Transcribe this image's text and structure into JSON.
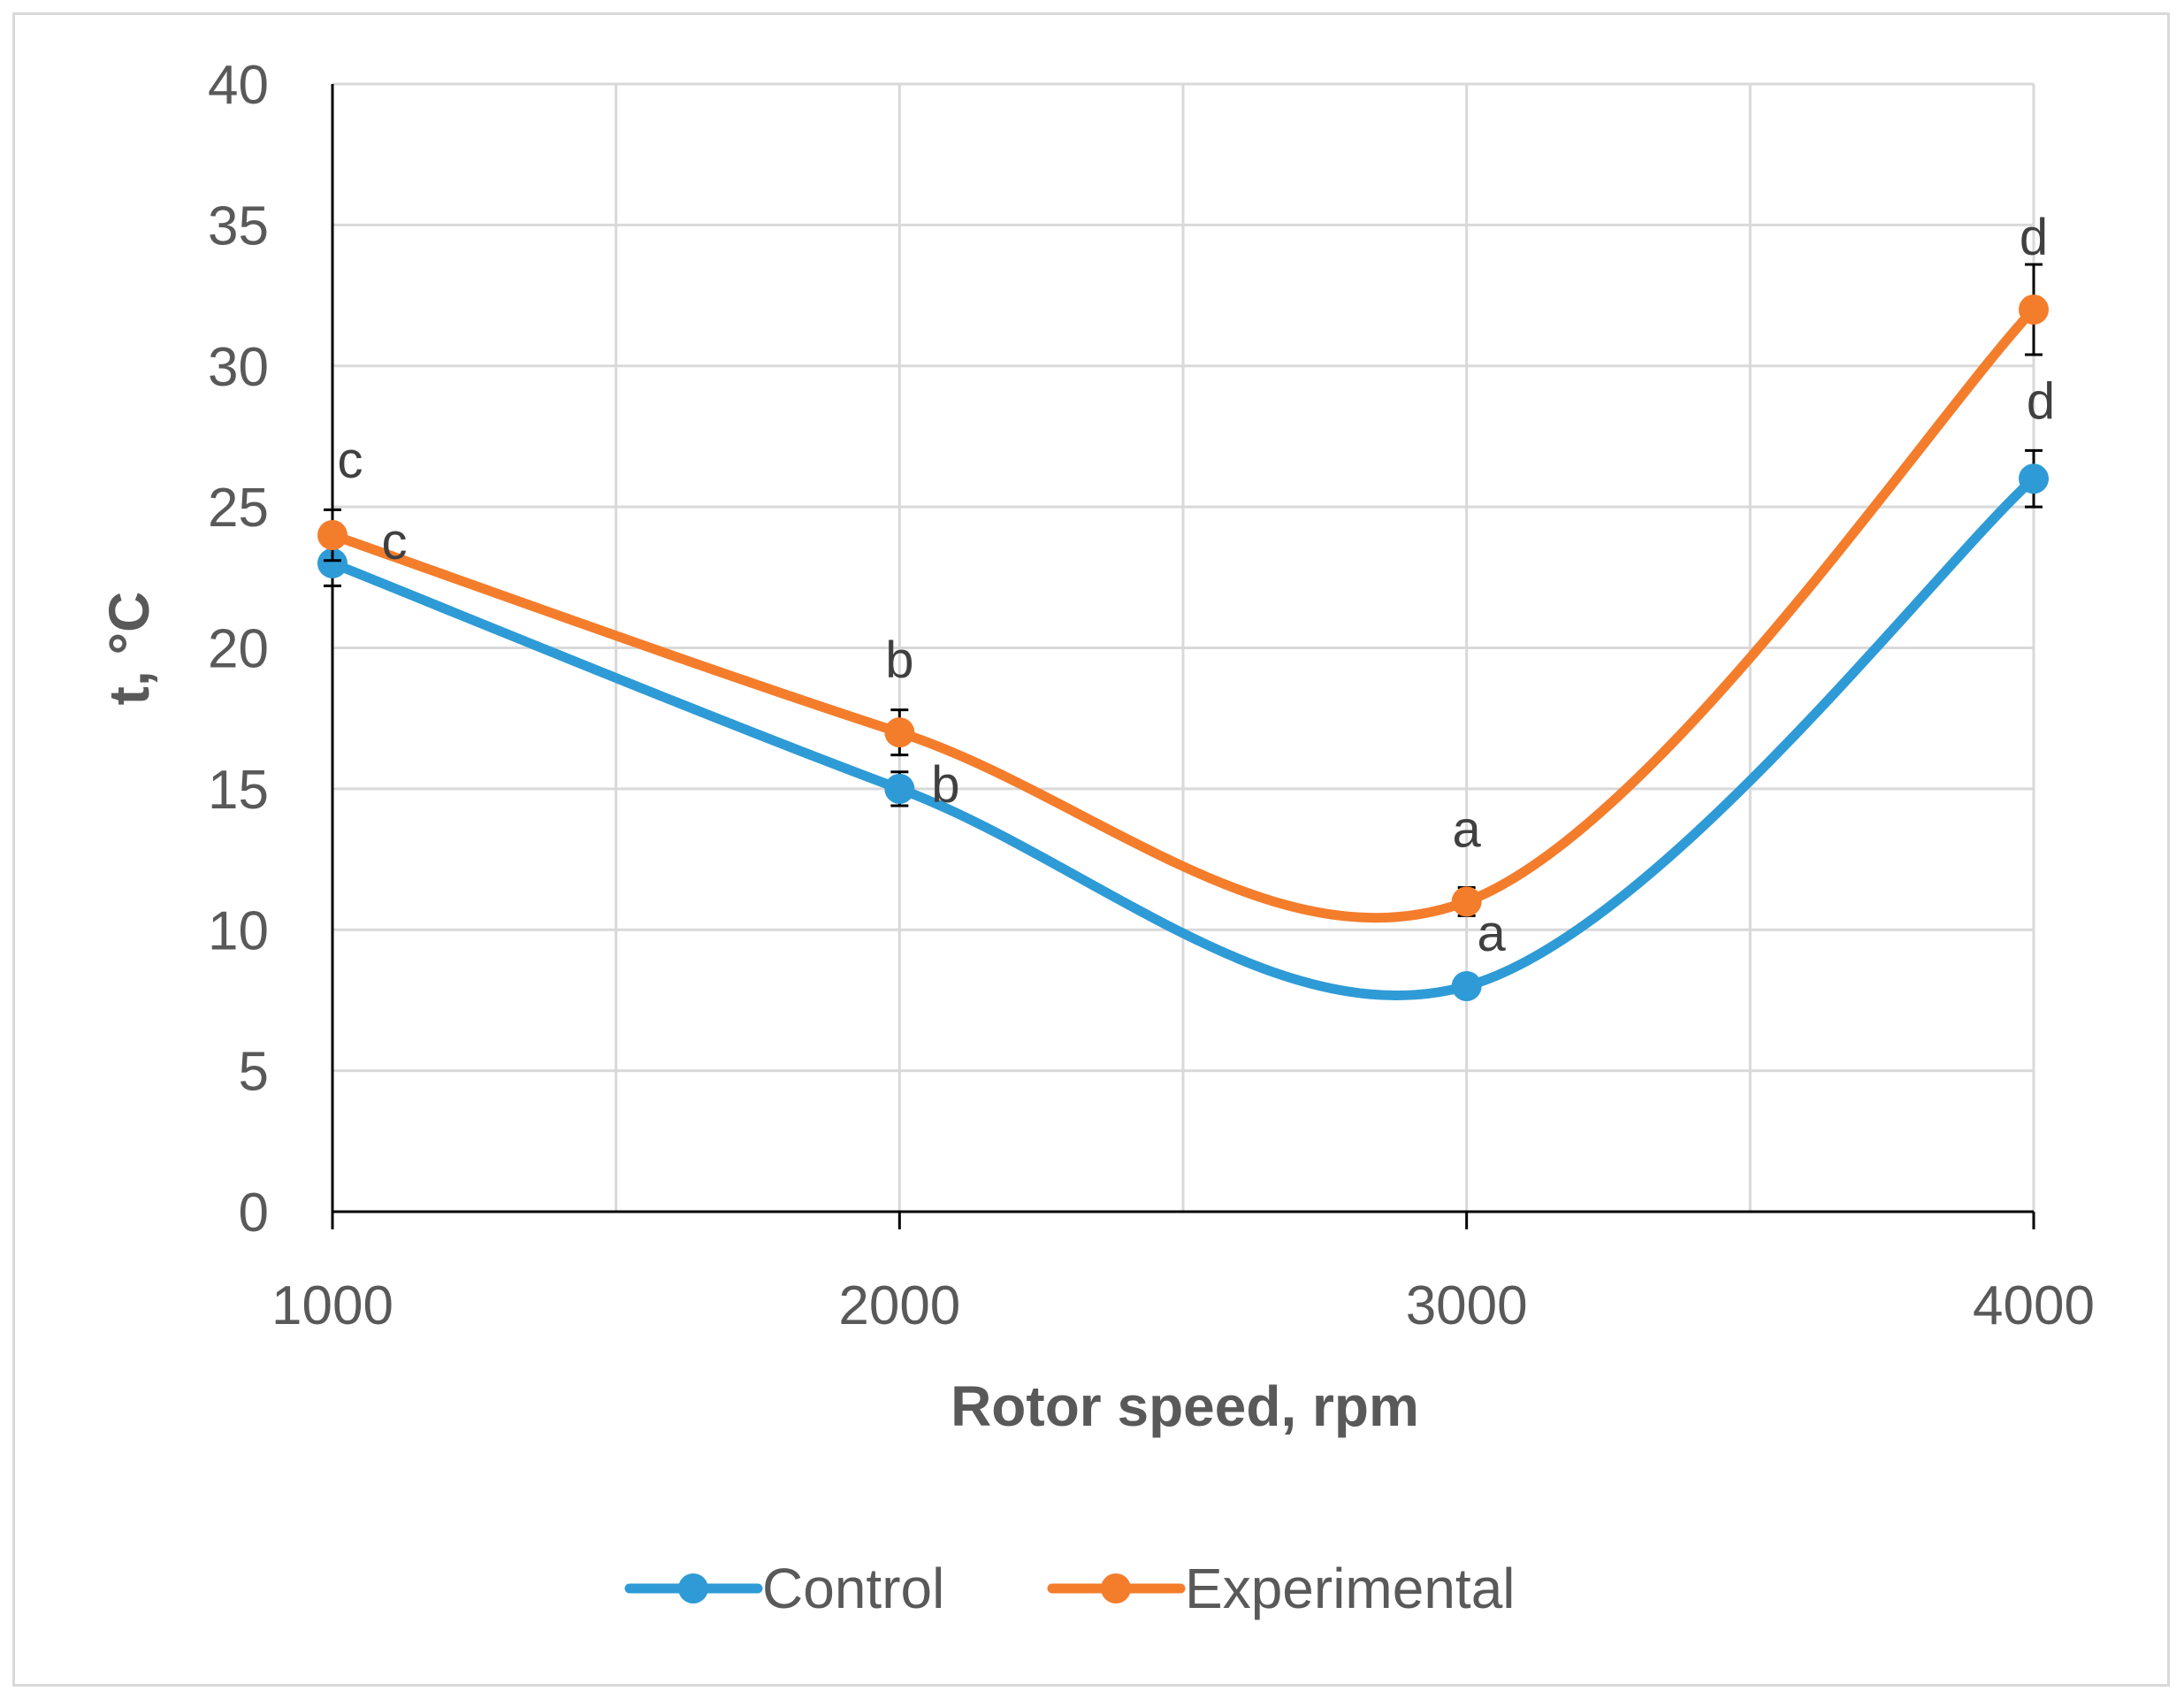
{
  "chart_data": {
    "type": "line",
    "title": "",
    "xlabel": "Rotor speed, rpm",
    "ylabel": "t, °C",
    "x": [
      1000,
      2000,
      3000,
      4000
    ],
    "xlim": [
      1000,
      4000
    ],
    "ylim": [
      0,
      40
    ],
    "x_ticks": [
      "1000",
      "2000",
      "3000",
      "4000"
    ],
    "y_ticks": [
      "0",
      "5",
      "10",
      "15",
      "20",
      "25",
      "30",
      "35",
      "40"
    ],
    "x_minor_gridlines": [
      1500,
      2500,
      3500
    ],
    "grid": true,
    "smooth": true,
    "legend_position": "bottom",
    "series": [
      {
        "name": "Control",
        "color": "#2e9bd6",
        "values": [
          23,
          15,
          8,
          26
        ],
        "errors": [
          0.8,
          0.6,
          0.3,
          1.0
        ],
        "labels": [
          "c",
          "b",
          "a",
          "d"
        ]
      },
      {
        "name": "Experimental",
        "color": "#f47d2c",
        "values": [
          24,
          17,
          11,
          32
        ],
        "errors": [
          0.9,
          0.8,
          0.5,
          1.6
        ],
        "labels": [
          "c",
          "b",
          "a",
          "d"
        ]
      }
    ]
  }
}
